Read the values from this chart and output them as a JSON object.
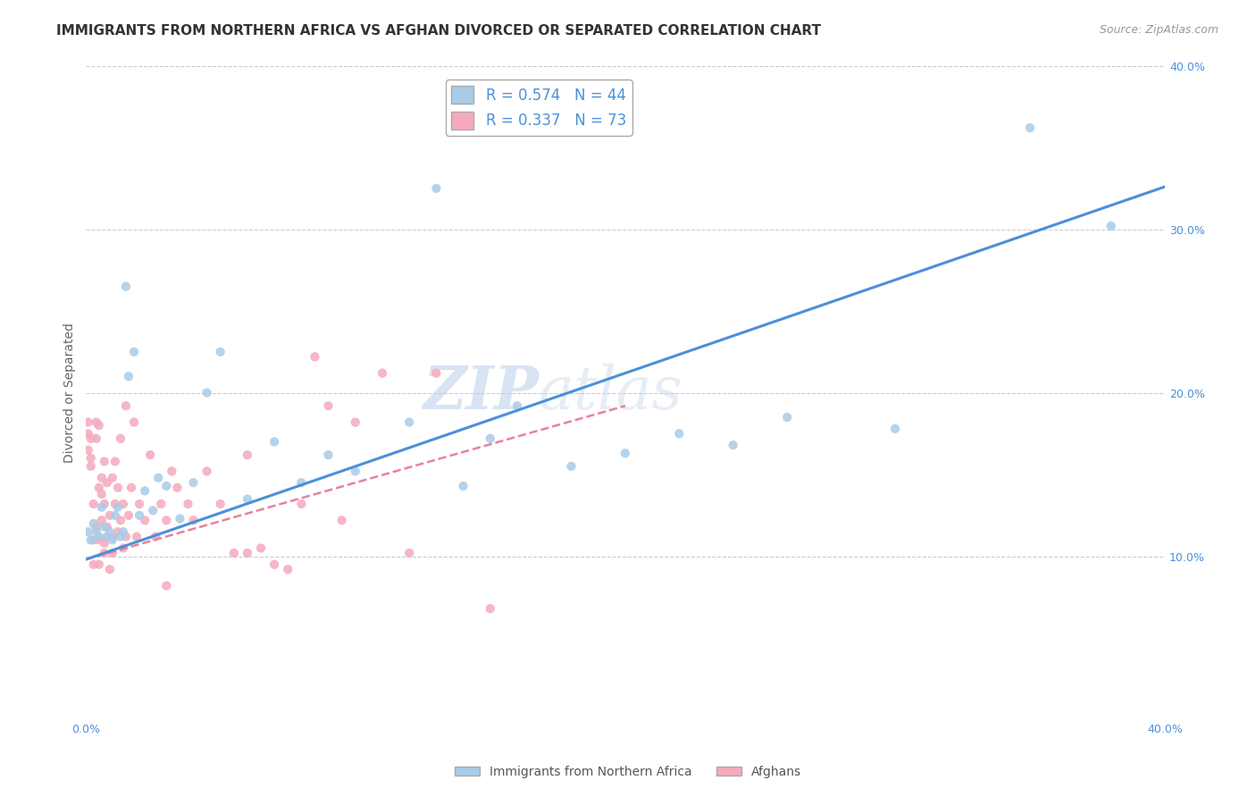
{
  "title": "IMMIGRANTS FROM NORTHERN AFRICA VS AFGHAN DIVORCED OR SEPARATED CORRELATION CHART",
  "source": "Source: ZipAtlas.com",
  "ylabel": "Divorced or Separated",
  "xlabel": "",
  "xlim": [
    0.0,
    0.4
  ],
  "ylim": [
    0.0,
    0.4
  ],
  "x_ticks": [
    0.0,
    0.05,
    0.1,
    0.15,
    0.2,
    0.25,
    0.3,
    0.35,
    0.4
  ],
  "x_tick_labels": [
    "0.0%",
    "",
    "",
    "",
    "",
    "",
    "",
    "",
    "40.0%"
  ],
  "y_ticks_right": [
    0.1,
    0.2,
    0.3,
    0.4
  ],
  "watermark": "ZIPatlas",
  "series1": {
    "label": "Immigrants from Northern Africa",
    "R": 0.574,
    "N": 44,
    "color": "#a8cce8",
    "line_color": "#4a90d9",
    "line_style": "solid",
    "trend_x0": 0.0,
    "trend_y0": 0.098,
    "trend_x1": 0.4,
    "trend_y1": 0.326,
    "x": [
      0.001,
      0.002,
      0.003,
      0.004,
      0.005,
      0.006,
      0.007,
      0.008,
      0.009,
      0.01,
      0.011,
      0.012,
      0.013,
      0.014,
      0.015,
      0.016,
      0.018,
      0.02,
      0.022,
      0.025,
      0.027,
      0.03,
      0.035,
      0.04,
      0.045,
      0.05,
      0.06,
      0.07,
      0.08,
      0.09,
      0.1,
      0.12,
      0.13,
      0.14,
      0.15,
      0.16,
      0.18,
      0.2,
      0.22,
      0.24,
      0.26,
      0.3,
      0.35,
      0.38
    ],
    "y": [
      0.115,
      0.11,
      0.12,
      0.115,
      0.112,
      0.13,
      0.118,
      0.112,
      0.115,
      0.11,
      0.125,
      0.13,
      0.112,
      0.115,
      0.265,
      0.21,
      0.225,
      0.125,
      0.14,
      0.128,
      0.148,
      0.143,
      0.123,
      0.145,
      0.2,
      0.225,
      0.135,
      0.17,
      0.145,
      0.162,
      0.152,
      0.182,
      0.325,
      0.143,
      0.172,
      0.192,
      0.155,
      0.163,
      0.175,
      0.168,
      0.185,
      0.178,
      0.362,
      0.302
    ]
  },
  "series2": {
    "label": "Afghans",
    "R": 0.337,
    "N": 73,
    "color": "#f4aabc",
    "line_color": "#e8829a",
    "line_style": "dashed",
    "trend_x0": 0.0,
    "trend_y0": 0.098,
    "trend_x1": 0.2,
    "trend_y1": 0.192,
    "x": [
      0.001,
      0.001,
      0.001,
      0.002,
      0.002,
      0.002,
      0.003,
      0.003,
      0.003,
      0.004,
      0.004,
      0.004,
      0.005,
      0.005,
      0.005,
      0.005,
      0.006,
      0.006,
      0.006,
      0.007,
      0.007,
      0.007,
      0.007,
      0.008,
      0.008,
      0.008,
      0.009,
      0.009,
      0.01,
      0.01,
      0.01,
      0.011,
      0.011,
      0.012,
      0.012,
      0.013,
      0.013,
      0.014,
      0.014,
      0.015,
      0.015,
      0.016,
      0.017,
      0.018,
      0.019,
      0.02,
      0.022,
      0.024,
      0.026,
      0.028,
      0.03,
      0.032,
      0.034,
      0.038,
      0.04,
      0.045,
      0.05,
      0.055,
      0.06,
      0.065,
      0.07,
      0.08,
      0.09,
      0.1,
      0.11,
      0.12,
      0.13,
      0.06,
      0.075,
      0.085,
      0.095,
      0.15,
      0.03
    ],
    "y": [
      0.165,
      0.182,
      0.175,
      0.16,
      0.172,
      0.155,
      0.095,
      0.132,
      0.11,
      0.172,
      0.182,
      0.118,
      0.095,
      0.142,
      0.18,
      0.11,
      0.122,
      0.148,
      0.138,
      0.102,
      0.132,
      0.158,
      0.108,
      0.112,
      0.145,
      0.118,
      0.092,
      0.125,
      0.102,
      0.148,
      0.112,
      0.132,
      0.158,
      0.115,
      0.142,
      0.122,
      0.172,
      0.105,
      0.132,
      0.112,
      0.192,
      0.125,
      0.142,
      0.182,
      0.112,
      0.132,
      0.122,
      0.162,
      0.112,
      0.132,
      0.122,
      0.152,
      0.142,
      0.132,
      0.122,
      0.152,
      0.132,
      0.102,
      0.162,
      0.105,
      0.095,
      0.132,
      0.192,
      0.182,
      0.212,
      0.102,
      0.212,
      0.102,
      0.092,
      0.222,
      0.122,
      0.068,
      0.082
    ]
  },
  "title_fontsize": 11,
  "source_fontsize": 9,
  "axis_fontsize": 10,
  "legend_fontsize": 12,
  "background_color": "#ffffff",
  "grid_color": "#cccccc"
}
